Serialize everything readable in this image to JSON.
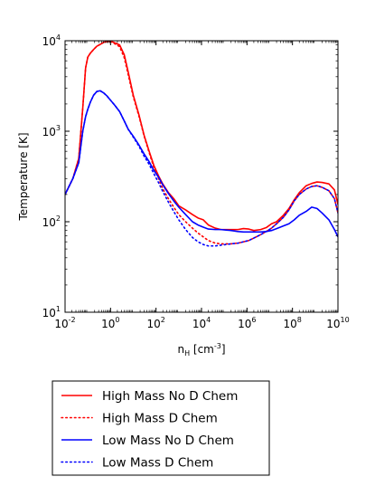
{
  "chart_data": {
    "type": "line",
    "xlabel": {
      "main": "n",
      "sub": "H",
      "rest": " [cm",
      "sup": "-3",
      "end": "]"
    },
    "ylabel": "Temperature [K]",
    "x_scale": "log",
    "y_scale": "log",
    "xlim": [
      0.01,
      10000000000
    ],
    "ylim": [
      10,
      10000
    ],
    "x_ticks": [
      {
        "base": "10",
        "exp": "-2",
        "value": 0.01
      },
      {
        "base": "10",
        "exp": "0",
        "value": 1
      },
      {
        "base": "10",
        "exp": "2",
        "value": 100
      },
      {
        "base": "10",
        "exp": "4",
        "value": 10000
      },
      {
        "base": "10",
        "exp": "6",
        "value": 1000000
      },
      {
        "base": "10",
        "exp": "8",
        "value": 100000000
      },
      {
        "base": "10",
        "exp": "10",
        "value": 10000000000
      }
    ],
    "y_ticks": [
      {
        "base": "10",
        "exp": "1",
        "value": 10
      },
      {
        "base": "10",
        "exp": "2",
        "value": 100
      },
      {
        "base": "10",
        "exp": "3",
        "value": 1000
      },
      {
        "base": "10",
        "exp": "4",
        "value": 10000
      }
    ],
    "grid": false,
    "legend_position": "below",
    "series": [
      {
        "name": "High Mass No D Chem",
        "color": "#ff0000",
        "style": "solid",
        "x": [
          0.01,
          0.022,
          0.04,
          0.06,
          0.08,
          0.1,
          0.13,
          0.18,
          0.25,
          0.35,
          0.5,
          0.7,
          1.0,
          1.5,
          2.5,
          4,
          6,
          10,
          18,
          30,
          50,
          80,
          130,
          200,
          350,
          600,
          1000,
          2000,
          4000,
          7000,
          12000,
          20000,
          40000,
          70000,
          120000,
          200000,
          400000,
          700000,
          1200000,
          2000000,
          4000000,
          7000000,
          12000000,
          20000000,
          40000000,
          70000000,
          120000000,
          200000000,
          400000000,
          700000000,
          1200000000,
          2000000000,
          4000000000,
          7000000000,
          10000000000
        ],
        "y": [
          200,
          300,
          500,
          1800,
          5000,
          6600,
          7300,
          8000,
          8700,
          9100,
          9600,
          9800,
          9900,
          9500,
          9000,
          7000,
          4500,
          2500,
          1500,
          900,
          600,
          420,
          320,
          260,
          210,
          180,
          150,
          135,
          120,
          110,
          105,
          92,
          85,
          82,
          82,
          82,
          82,
          84,
          83,
          80,
          82,
          86,
          95,
          100,
          118,
          140,
          175,
          210,
          250,
          265,
          275,
          272,
          262,
          225,
          155
        ]
      },
      {
        "name": "High Mass D Chem",
        "color": "#ff0000",
        "style": "dotted",
        "x": [
          0.01,
          0.022,
          0.04,
          0.06,
          0.08,
          0.1,
          0.13,
          0.18,
          0.25,
          0.35,
          0.5,
          0.7,
          1.0,
          1.5,
          2.5,
          4,
          6,
          10,
          18,
          30,
          50,
          80,
          130,
          200,
          350,
          600,
          1000,
          2000,
          4000,
          7000,
          12000,
          20000,
          40000,
          70000,
          120000,
          200000,
          400000,
          700000,
          1200000,
          2000000,
          4000000,
          7000000,
          12000000,
          20000000,
          40000000,
          70000000,
          120000000,
          200000000,
          400000000,
          700000000,
          1200000000,
          2000000000,
          4000000000,
          7000000000,
          10000000000
        ],
        "y": [
          200,
          300,
          500,
          1800,
          5000,
          6600,
          7300,
          8000,
          8700,
          9100,
          9600,
          9800,
          9800,
          9300,
          8600,
          6500,
          4200,
          2400,
          1450,
          880,
          580,
          400,
          300,
          230,
          180,
          145,
          120,
          100,
          85,
          75,
          68,
          62,
          58,
          57,
          57,
          57,
          58,
          60,
          62,
          66,
          72,
          78,
          85,
          95,
          112,
          135,
          170,
          200,
          230,
          245,
          250,
          240,
          220,
          180,
          125
        ]
      },
      {
        "name": "Low Mass No D Chem",
        "color": "#0000ff",
        "style": "solid",
        "x": [
          0.01,
          0.022,
          0.04,
          0.06,
          0.08,
          0.1,
          0.13,
          0.18,
          0.25,
          0.35,
          0.5,
          0.7,
          1.0,
          1.5,
          2.5,
          4,
          6,
          10,
          18,
          30,
          50,
          80,
          130,
          200,
          350,
          600,
          1000,
          2000,
          4000,
          7000,
          12000,
          20000,
          40000,
          70000,
          120000,
          200000,
          400000,
          700000,
          1200000,
          2000000,
          4000000,
          7000000,
          12000000,
          20000000,
          40000000,
          70000000,
          120000000,
          200000000,
          400000000,
          700000000,
          1200000000,
          2000000000,
          4000000000,
          7000000000,
          10000000000
        ],
        "y": [
          200,
          300,
          450,
          1000,
          1450,
          1750,
          2100,
          2500,
          2750,
          2800,
          2650,
          2450,
          2200,
          1950,
          1650,
          1300,
          1050,
          880,
          700,
          560,
          460,
          370,
          310,
          255,
          205,
          170,
          145,
          120,
          100,
          92,
          87,
          83,
          82,
          82,
          81,
          80,
          78,
          77,
          77,
          77,
          77,
          78,
          80,
          84,
          90,
          95,
          105,
          118,
          130,
          145,
          140,
          125,
          105,
          82,
          68
        ]
      },
      {
        "name": "Low Mass D Chem",
        "color": "#0000ff",
        "style": "dotted",
        "x": [
          0.01,
          0.022,
          0.04,
          0.06,
          0.08,
          0.1,
          0.13,
          0.18,
          0.25,
          0.35,
          0.5,
          0.7,
          1.0,
          1.5,
          2.5,
          4,
          6,
          10,
          18,
          30,
          50,
          80,
          130,
          200,
          350,
          600,
          1000,
          2000,
          4000,
          7000,
          12000,
          20000,
          40000,
          70000,
          120000,
          200000,
          400000,
          700000,
          1200000,
          2000000,
          4000000,
          7000000,
          12000000,
          20000000,
          40000000,
          70000000,
          120000000,
          200000000,
          400000000,
          700000000,
          1200000000,
          2000000000,
          4000000000,
          7000000000,
          10000000000
        ],
        "y": [
          200,
          300,
          450,
          1000,
          1450,
          1750,
          2100,
          2500,
          2750,
          2800,
          2650,
          2450,
          2200,
          1950,
          1650,
          1300,
          1050,
          860,
          680,
          530,
          430,
          340,
          270,
          215,
          165,
          130,
          105,
          82,
          67,
          60,
          56,
          54,
          54,
          55,
          56,
          57,
          58,
          60,
          62,
          66,
          72,
          78,
          85,
          95,
          112,
          135,
          170,
          200,
          230,
          245,
          250,
          240,
          220,
          180,
          125
        ]
      }
    ]
  }
}
